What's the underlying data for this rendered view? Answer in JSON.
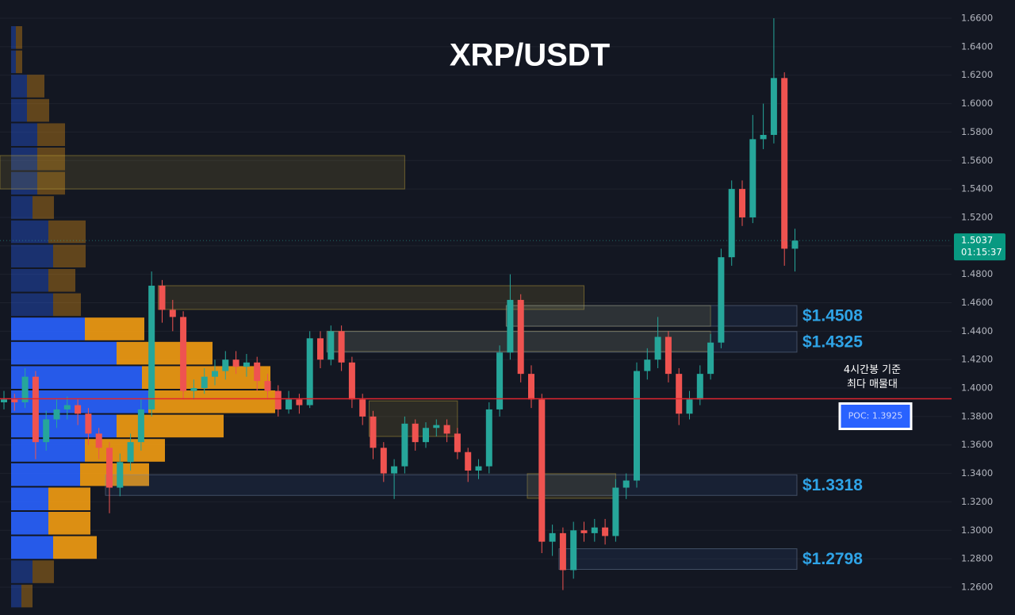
{
  "chart_data": {
    "type": "candlestick",
    "title": "XRP/USDT",
    "ylim": [
      1.2505,
      1.6617
    ],
    "yticks": [
      {
        "value": 1.66,
        "label": "1.6600"
      },
      {
        "value": 1.64,
        "label": "1.6400"
      },
      {
        "value": 1.62,
        "label": "1.6200"
      },
      {
        "value": 1.6,
        "label": "1.6000"
      },
      {
        "value": 1.58,
        "label": "1.5800"
      },
      {
        "value": 1.56,
        "label": "1.5600"
      },
      {
        "value": 1.54,
        "label": "1.5400"
      },
      {
        "value": 1.52,
        "label": "1.5200"
      },
      {
        "value": 1.5,
        "label": "1.5000"
      },
      {
        "value": 1.48,
        "label": "1.4800"
      },
      {
        "value": 1.46,
        "label": "1.4600"
      },
      {
        "value": 1.44,
        "label": "1.4400"
      },
      {
        "value": 1.42,
        "label": "1.4200"
      },
      {
        "value": 1.4,
        "label": "1.4000"
      },
      {
        "value": 1.38,
        "label": "1.3800"
      },
      {
        "value": 1.36,
        "label": "1.3600"
      },
      {
        "value": 1.34,
        "label": "1.3400"
      },
      {
        "value": 1.32,
        "label": "1.3200"
      },
      {
        "value": 1.3,
        "label": "1.3000"
      },
      {
        "value": 1.28,
        "label": "1.2800"
      },
      {
        "value": 1.26,
        "label": "1.2600"
      }
    ],
    "grid": true,
    "up_color": "#26a69a",
    "down_color": "#ef5350",
    "open": [
      1.39,
      1.392,
      1.39,
      1.408,
      1.362,
      1.378,
      1.385,
      1.388,
      1.382,
      1.368,
      1.358,
      1.33,
      1.348,
      1.362,
      1.385,
      1.472,
      1.455,
      1.45,
      1.398,
      1.4,
      1.408,
      1.412,
      1.42,
      1.415,
      1.418,
      1.405,
      1.398,
      1.385,
      1.392,
      1.388,
      1.435,
      1.42,
      1.44,
      1.418,
      1.392,
      1.38,
      1.358,
      1.34,
      1.345,
      1.375,
      1.362,
      1.372,
      1.374,
      1.368,
      1.355,
      1.342,
      1.345,
      1.385,
      1.425,
      1.462,
      1.41,
      1.392,
      1.292,
      1.298,
      1.272,
      1.3,
      1.298,
      1.302,
      1.296,
      1.33,
      1.335,
      1.412,
      1.42,
      1.436,
      1.41,
      1.382,
      1.392,
      1.41,
      1.432,
      1.492,
      1.54,
      1.52,
      1.575,
      1.578,
      1.618,
      1.498
    ],
    "high": [
      1.398,
      1.396,
      1.414,
      1.412,
      1.384,
      1.392,
      1.394,
      1.392,
      1.386,
      1.372,
      1.362,
      1.354,
      1.368,
      1.392,
      1.482,
      1.476,
      1.462,
      1.454,
      1.406,
      1.414,
      1.42,
      1.426,
      1.426,
      1.424,
      1.422,
      1.41,
      1.402,
      1.398,
      1.396,
      1.44,
      1.44,
      1.444,
      1.444,
      1.422,
      1.396,
      1.384,
      1.362,
      1.35,
      1.38,
      1.378,
      1.376,
      1.378,
      1.378,
      1.372,
      1.358,
      1.35,
      1.39,
      1.43,
      1.48,
      1.466,
      1.416,
      1.396,
      1.304,
      1.302,
      1.306,
      1.306,
      1.308,
      1.308,
      1.336,
      1.34,
      1.418,
      1.428,
      1.45,
      1.44,
      1.414,
      1.398,
      1.416,
      1.438,
      1.498,
      1.546,
      1.546,
      1.592,
      1.6,
      1.66,
      1.622,
      1.512
    ],
    "low": [
      1.385,
      1.384,
      1.386,
      1.35,
      1.356,
      1.372,
      1.378,
      1.374,
      1.36,
      1.35,
      1.312,
      1.324,
      1.342,
      1.356,
      1.38,
      1.446,
      1.44,
      1.392,
      1.392,
      1.396,
      1.402,
      1.406,
      1.41,
      1.408,
      1.398,
      1.392,
      1.38,
      1.382,
      1.382,
      1.386,
      1.414,
      1.416,
      1.412,
      1.386,
      1.374,
      1.35,
      1.334,
      1.322,
      1.34,
      1.356,
      1.358,
      1.366,
      1.362,
      1.35,
      1.334,
      1.336,
      1.34,
      1.38,
      1.42,
      1.404,
      1.386,
      1.284,
      1.282,
      1.258,
      1.266,
      1.292,
      1.292,
      1.29,
      1.292,
      1.322,
      1.33,
      1.406,
      1.414,
      1.404,
      1.374,
      1.378,
      1.388,
      1.406,
      1.428,
      1.486,
      1.514,
      1.516,
      1.568,
      1.572,
      1.486,
      1.482
    ],
    "close": [
      1.392,
      1.39,
      1.408,
      1.362,
      1.378,
      1.385,
      1.388,
      1.382,
      1.368,
      1.358,
      1.33,
      1.348,
      1.362,
      1.385,
      1.472,
      1.455,
      1.45,
      1.398,
      1.4,
      1.408,
      1.412,
      1.42,
      1.415,
      1.418,
      1.405,
      1.398,
      1.385,
      1.392,
      1.388,
      1.435,
      1.42,
      1.44,
      1.418,
      1.392,
      1.38,
      1.358,
      1.34,
      1.345,
      1.375,
      1.362,
      1.372,
      1.374,
      1.368,
      1.355,
      1.342,
      1.345,
      1.385,
      1.425,
      1.462,
      1.41,
      1.392,
      1.292,
      1.298,
      1.272,
      1.3,
      1.298,
      1.302,
      1.296,
      1.33,
      1.335,
      1.412,
      1.42,
      1.436,
      1.41,
      1.382,
      1.392,
      1.41,
      1.432,
      1.492,
      1.54,
      1.52,
      1.575,
      1.578,
      1.618,
      1.498,
      1.5037
    ],
    "last_price": 1.5037,
    "countdown": "01:15:37",
    "poc": {
      "value": 1.3925,
      "label": "POC: 1.3925"
    },
    "annotation": [
      "4시간봉 기준",
      "최다 매물대"
    ],
    "levels": [
      {
        "value": 1.4508,
        "label": "$1.4508",
        "from": 48
      },
      {
        "value": 1.4325,
        "label": "$1.4325",
        "from": 31
      },
      {
        "value": 1.3318,
        "label": "$1.3318",
        "from": 10
      },
      {
        "value": 1.2798,
        "label": "$1.2798",
        "from": 53
      }
    ],
    "order_blocks": [
      {
        "from": 0,
        "to": 38,
        "low": 1.54,
        "high": 1.5635
      },
      {
        "from": 15,
        "to": 55,
        "low": 1.4553,
        "high": 1.472
      },
      {
        "from": 48,
        "to": 67,
        "low": 1.4435,
        "high": 1.458
      },
      {
        "from": 31,
        "to": 67,
        "low": 1.4257,
        "high": 1.44
      },
      {
        "from": 35,
        "to": 43,
        "low": 1.366,
        "high": 1.391
      },
      {
        "from": 50,
        "to": 58,
        "low": 1.3225,
        "high": 1.3398
      }
    ],
    "volume_profile": {
      "value_area": [
        12,
        21
      ],
      "buy": {
        "color": "#2962ff",
        "values": [
          6,
          6,
          20,
          20,
          33,
          33,
          33,
          27,
          47,
          53,
          47,
          53,
          93,
          133,
          165,
          173,
          133,
          93,
          87,
          47,
          47,
          53,
          27,
          13
        ]
      },
      "sell": {
        "color": "#f39c12",
        "values": [
          8,
          8,
          22,
          28,
          35,
          35,
          35,
          27,
          47,
          41,
          34,
          35,
          75,
          121,
          162,
          160,
          135,
          101,
          87,
          53,
          53,
          55,
          27,
          14
        ]
      }
    }
  }
}
